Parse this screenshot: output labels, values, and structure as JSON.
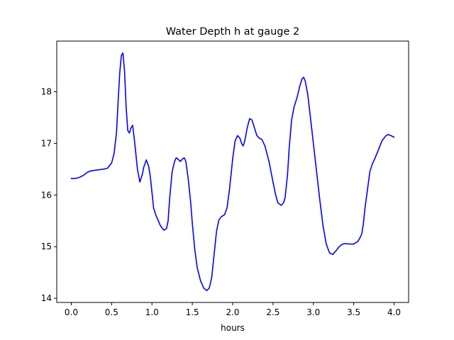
{
  "chart_data": {
    "type": "line",
    "title": "Water Depth h at gauge 2",
    "xlabel": "hours",
    "ylabel": "",
    "xlim": [
      -0.18,
      4.18
    ],
    "ylim": [
      13.92,
      18.98
    ],
    "xticks": [
      0.0,
      0.5,
      1.0,
      1.5,
      2.0,
      2.5,
      3.0,
      3.5,
      4.0
    ],
    "xtick_labels": [
      "0.0",
      "0.5",
      "1.0",
      "1.5",
      "2.0",
      "2.5",
      "3.0",
      "3.5",
      "4.0"
    ],
    "yticks": [
      14,
      15,
      16,
      17,
      18
    ],
    "ytick_labels": [
      "14",
      "15",
      "16",
      "17",
      "18"
    ],
    "grid": false,
    "color": "#0000ff",
    "series": [
      {
        "name": "",
        "x": [
          0.0,
          0.05,
          0.1,
          0.15,
          0.2,
          0.25,
          0.3,
          0.35,
          0.4,
          0.45,
          0.5,
          0.53,
          0.56,
          0.58,
          0.6,
          0.62,
          0.64,
          0.66,
          0.68,
          0.7,
          0.72,
          0.74,
          0.76,
          0.78,
          0.8,
          0.82,
          0.85,
          0.88,
          0.9,
          0.93,
          0.96,
          0.98,
          1.0,
          1.02,
          1.05,
          1.08,
          1.1,
          1.13,
          1.15,
          1.18,
          1.2,
          1.22,
          1.25,
          1.28,
          1.3,
          1.32,
          1.35,
          1.38,
          1.4,
          1.42,
          1.45,
          1.48,
          1.5,
          1.53,
          1.56,
          1.6,
          1.64,
          1.68,
          1.71,
          1.74,
          1.77,
          1.8,
          1.83,
          1.86,
          1.9,
          1.93,
          1.96,
          2.0,
          2.03,
          2.06,
          2.09,
          2.11,
          2.13,
          2.15,
          2.18,
          2.21,
          2.24,
          2.27,
          2.3,
          2.33,
          2.36,
          2.4,
          2.45,
          2.5,
          2.53,
          2.56,
          2.6,
          2.63,
          2.65,
          2.68,
          2.7,
          2.73,
          2.76,
          2.8,
          2.83,
          2.86,
          2.88,
          2.9,
          2.93,
          2.96,
          3.0,
          3.04,
          3.08,
          3.12,
          3.16,
          3.2,
          3.24,
          3.28,
          3.32,
          3.36,
          3.4,
          3.45,
          3.5,
          3.55,
          3.58,
          3.6,
          3.62,
          3.64,
          3.67,
          3.7,
          3.73,
          3.76,
          3.8,
          3.85,
          3.9,
          3.93,
          3.96,
          4.0
        ],
        "y": [
          16.32,
          16.32,
          16.34,
          16.38,
          16.44,
          16.47,
          16.48,
          16.49,
          16.5,
          16.52,
          16.62,
          16.8,
          17.2,
          17.8,
          18.35,
          18.7,
          18.75,
          18.4,
          17.7,
          17.25,
          17.2,
          17.3,
          17.35,
          17.1,
          16.8,
          16.5,
          16.25,
          16.4,
          16.55,
          16.68,
          16.55,
          16.35,
          16.05,
          15.75,
          15.6,
          15.5,
          15.42,
          15.35,
          15.32,
          15.35,
          15.5,
          15.95,
          16.45,
          16.65,
          16.72,
          16.7,
          16.65,
          16.7,
          16.72,
          16.65,
          16.3,
          15.85,
          15.45,
          14.95,
          14.6,
          14.35,
          14.2,
          14.15,
          14.2,
          14.4,
          14.85,
          15.3,
          15.52,
          15.58,
          15.62,
          15.75,
          16.1,
          16.7,
          17.05,
          17.15,
          17.1,
          17.0,
          16.95,
          17.05,
          17.3,
          17.48,
          17.45,
          17.3,
          17.15,
          17.1,
          17.08,
          16.95,
          16.65,
          16.25,
          16.02,
          15.85,
          15.8,
          15.85,
          15.95,
          16.4,
          16.9,
          17.45,
          17.7,
          17.9,
          18.1,
          18.25,
          18.28,
          18.2,
          17.95,
          17.55,
          17.0,
          16.45,
          15.9,
          15.4,
          15.05,
          14.88,
          14.85,
          14.92,
          15.0,
          15.05,
          15.06,
          15.05,
          15.05,
          15.1,
          15.18,
          15.25,
          15.45,
          15.75,
          16.1,
          16.45,
          16.6,
          16.7,
          16.85,
          17.05,
          17.15,
          17.17,
          17.15,
          17.12
        ]
      }
    ]
  }
}
